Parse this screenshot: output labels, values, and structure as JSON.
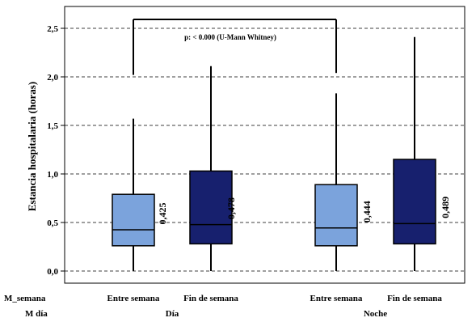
{
  "chart_data": {
    "type": "boxplot",
    "ylabel": "Estancia hospitalaria (horas)",
    "ylim": [
      0,
      2.5
    ],
    "yticks": [
      "0,0",
      "0,5",
      "1,0",
      "1,5",
      "2,0",
      "2,5"
    ],
    "grid": "horizontal dashed",
    "annotation": "p: < 0.000 (U-Mann Whitney)",
    "row_labels": {
      "semana": "M_semana",
      "dia": "M  día"
    },
    "groups": [
      {
        "label": "Día",
        "categories": [
          "Entre semana",
          "Fin de semana"
        ]
      },
      {
        "label": "Noche",
        "categories": [
          "Entre semana",
          "Fin de semana"
        ]
      }
    ],
    "boxes": [
      {
        "group": "Día",
        "category": "Entre semana",
        "min": 0.0,
        "q1": 0.26,
        "median": 0.425,
        "q3": 0.79,
        "max": 1.57,
        "median_label": "0,425",
        "color": "#7ba3dc"
      },
      {
        "group": "Día",
        "category": "Fin de semana",
        "min": 0.0,
        "q1": 0.28,
        "median": 0.478,
        "q3": 1.03,
        "max": 2.11,
        "median_label": "0,478",
        "color": "#17206e"
      },
      {
        "group": "Noche",
        "category": "Entre semana",
        "min": 0.0,
        "q1": 0.26,
        "median": 0.444,
        "q3": 0.89,
        "max": 1.83,
        "median_label": "0,444",
        "color": "#7ba3dc"
      },
      {
        "group": "Noche",
        "category": "Fin de semana",
        "min": 0.0,
        "q1": 0.28,
        "median": 0.489,
        "q3": 1.15,
        "max": 2.41,
        "median_label": "0,489",
        "color": "#17206e"
      }
    ],
    "bracket": {
      "from_group": "Día",
      "to_group": "Noche",
      "y": 2.6,
      "left_bottom": 2.02,
      "right_bottom": 2.04
    }
  }
}
